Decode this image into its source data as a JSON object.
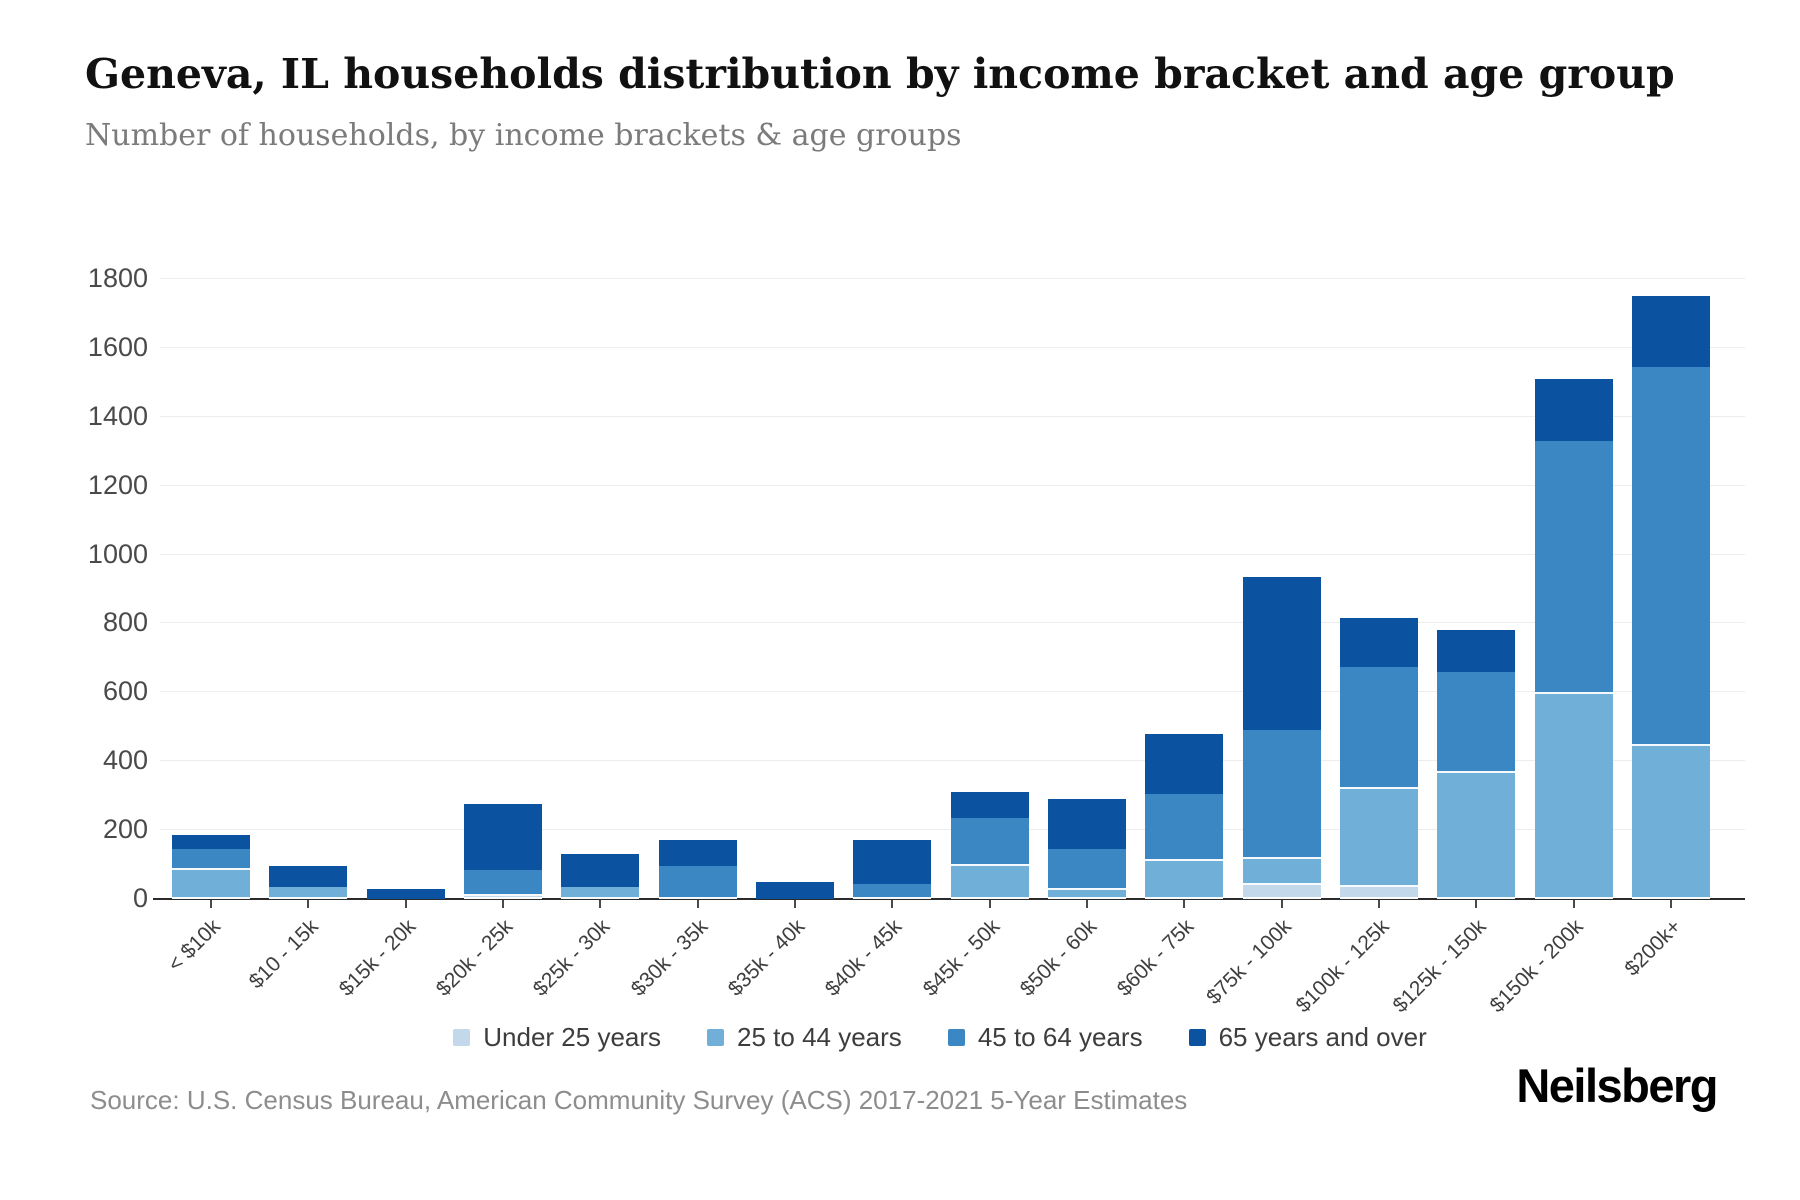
{
  "header": {
    "title": "Geneva, IL households distribution by income bracket and age group",
    "subtitle": "Number of households, by income brackets & age groups"
  },
  "footer": {
    "source": "Source: U.S. Census Bureau, American Community Survey (ACS) 2017-2021 5-Year Estimates",
    "brand": "Neilsberg"
  },
  "chart_data": {
    "type": "bar",
    "stacked": true,
    "title": "Geneva, IL households distribution by income bracket and age group",
    "subtitle": "Number of households, by income brackets & age groups",
    "xlabel": "",
    "ylabel": "",
    "ylim": [
      0,
      1800
    ],
    "ytick_step": 200,
    "grid": true,
    "legend_position": "bottom",
    "categories": [
      "< $10k",
      "$10 - 15k",
      "$15k - 20k",
      "$20k - 25k",
      "$25k - 30k",
      "$30k - 35k",
      "$35k - 40k",
      "$40k - 45k",
      "$45k - 50k",
      "$50k - 60k",
      "$60k - 75k",
      "$75k - 100k",
      "$100k - 125k",
      "$125k - 150k",
      "$150k - 200k",
      "$200k+"
    ],
    "series": [
      {
        "name": "Under 25 years",
        "color": "#c3d8ea",
        "values": [
          0,
          0,
          0,
          10,
          0,
          0,
          0,
          0,
          0,
          0,
          0,
          40,
          35,
          0,
          0,
          0
        ]
      },
      {
        "name": "25 to 44 years",
        "color": "#6fafd8",
        "values": [
          85,
          35,
          0,
          0,
          35,
          0,
          0,
          0,
          95,
          25,
          110,
          75,
          285,
          365,
          595,
          445
        ]
      },
      {
        "name": "45 to 64 years",
        "color": "#3a87c4",
        "values": [
          60,
          0,
          0,
          75,
          0,
          95,
          0,
          45,
          140,
          120,
          195,
          375,
          355,
          295,
          735,
          1100
        ]
      },
      {
        "name": "65 years and over",
        "color": "#0b52a1",
        "values": [
          40,
          60,
          30,
          190,
          95,
          75,
          50,
          125,
          75,
          145,
          175,
          445,
          140,
          120,
          180,
          205
        ]
      }
    ],
    "totals": [
      185,
      95,
      30,
      275,
      130,
      170,
      50,
      170,
      310,
      290,
      480,
      935,
      815,
      780,
      1510,
      1750
    ]
  }
}
